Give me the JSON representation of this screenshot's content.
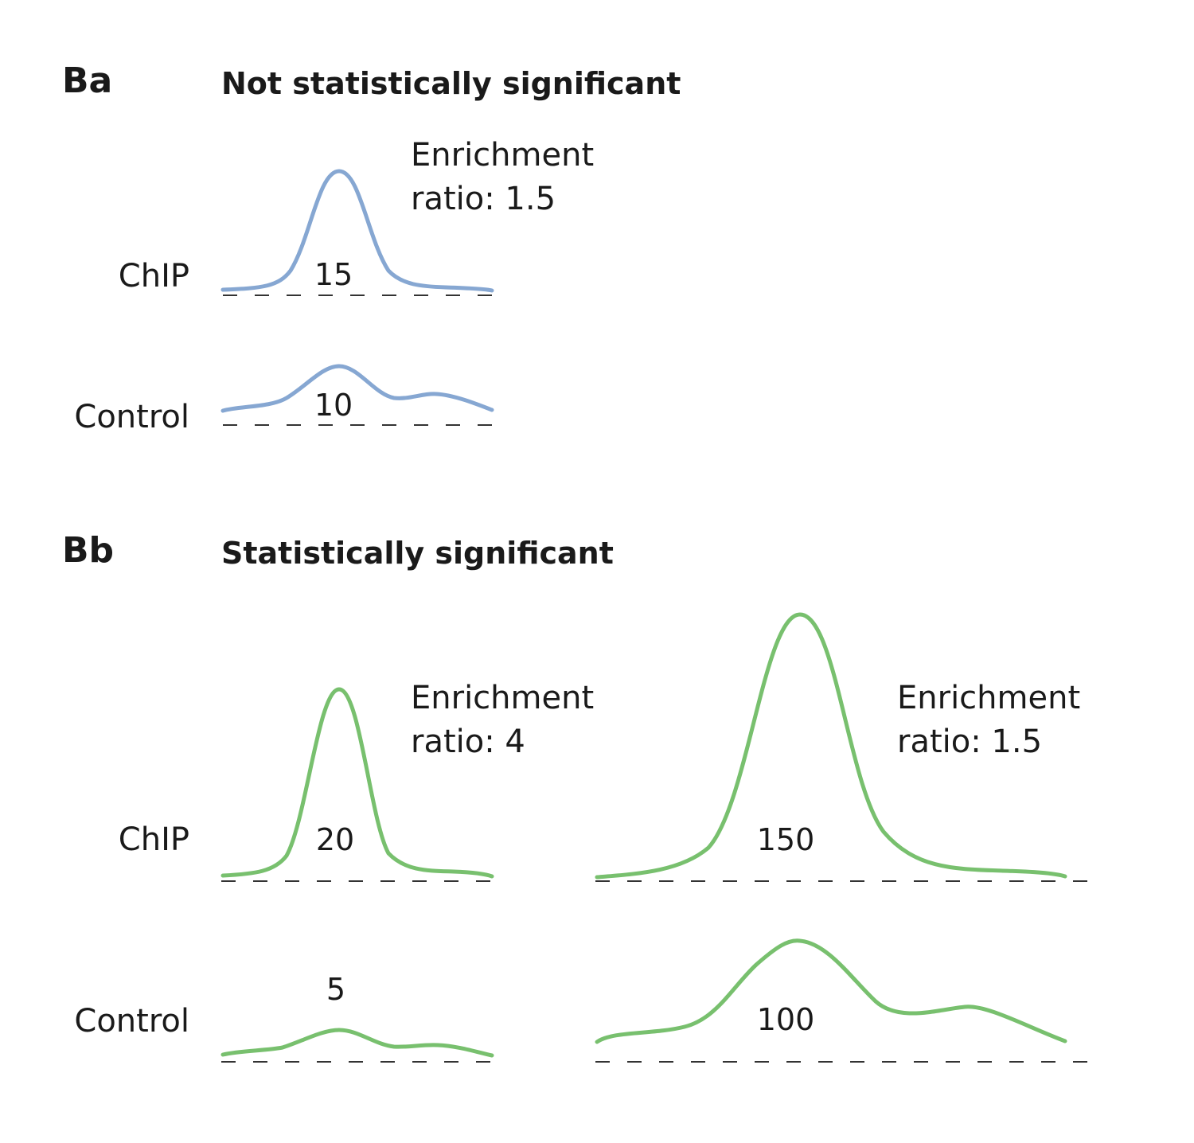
{
  "colors": {
    "panel_a": "#86a7d2",
    "panel_b": "#78c06e",
    "text": "#1a1a1a"
  },
  "panel_a": {
    "label": "Ba",
    "title": "Not statistically significant",
    "chip_label": "ChIP",
    "control_label": "Control",
    "chip_count": "15",
    "control_count": "10",
    "ratio_line1": "Enrichment",
    "ratio_line2": "ratio: 1.5"
  },
  "panel_b": {
    "label": "Bb",
    "title": "Statistically significant",
    "chip_label": "ChIP",
    "control_label": "Control",
    "left": {
      "chip_count": "20",
      "control_count": "5",
      "ratio_line1": "Enrichment",
      "ratio_line2": "ratio: 4"
    },
    "right": {
      "chip_count": "150",
      "control_count": "100",
      "ratio_line1": "Enrichment",
      "ratio_line2": "ratio: 1.5"
    }
  }
}
